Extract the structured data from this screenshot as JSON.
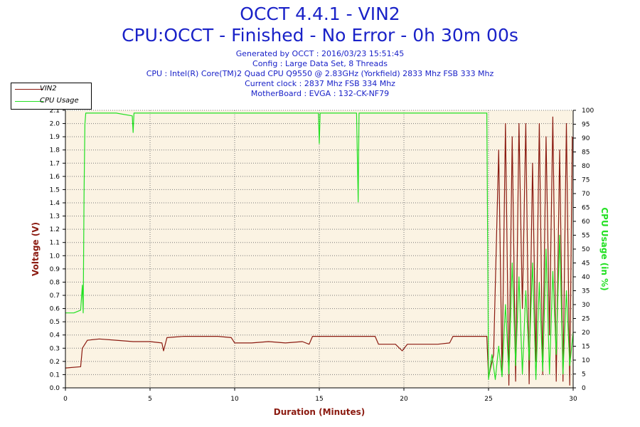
{
  "header": {
    "title_line1": "OCCT 4.4.1 - VIN2",
    "title_line2": "CPU:OCCT - Finished - No Error - 0h 30m 00s",
    "info_lines": [
      "Generated by OCCT : 2016/03/23 15:51:45",
      "Config : Large Data Set, 8 Threads",
      "CPU : Intel(R) Core(TM)2 Quad CPU Q9550 @ 2.83GHz (Yorkfield) 2833 Mhz FSB 333 Mhz",
      "Current clock : 2837 Mhz FSB 334 Mhz",
      "MotherBoard : EVGA : 132-CK-NF79"
    ]
  },
  "legend": {
    "items": [
      {
        "label": "VIN2",
        "color": "#8b1a10"
      },
      {
        "label": "CPU Usage",
        "color": "#22e022"
      }
    ]
  },
  "chart_data": {
    "type": "line",
    "xlabel": "Duration (Minutes)",
    "ylabel_left": "Voltage (V)",
    "ylabel_right": "CPU Usage (in %)",
    "xlim": [
      0,
      30
    ],
    "ylim_left": [
      0,
      2.1
    ],
    "ylim_right": [
      0,
      100
    ],
    "x_ticks": [
      0,
      5,
      10,
      15,
      20,
      25,
      30
    ],
    "y_left_ticks": [
      "0.0",
      "0.1",
      "0.2",
      "0.3",
      "0.4",
      "0.5",
      "0.6",
      "0.7",
      "0.8",
      "0.9",
      "1.0",
      "1.1",
      "1.2",
      "1.3",
      "1.4",
      "1.5",
      "1.6",
      "1.7",
      "1.8",
      "1.9",
      "2.0",
      "2.1"
    ],
    "y_right_ticks": [
      0,
      5,
      10,
      15,
      20,
      25,
      30,
      35,
      40,
      45,
      50,
      55,
      60,
      65,
      70,
      75,
      80,
      85,
      90,
      95,
      100
    ],
    "background_color": "#fbf3e3",
    "grid": "dotted",
    "series": [
      {
        "name": "VIN2",
        "axis": "left",
        "color": "#8b1a10",
        "points": [
          [
            0.0,
            0.15
          ],
          [
            0.9,
            0.16
          ],
          [
            1.0,
            0.3
          ],
          [
            1.3,
            0.36
          ],
          [
            2.0,
            0.37
          ],
          [
            3.0,
            0.36
          ],
          [
            4.0,
            0.35
          ],
          [
            5.0,
            0.35
          ],
          [
            5.7,
            0.34
          ],
          [
            5.8,
            0.28
          ],
          [
            6.0,
            0.38
          ],
          [
            7.0,
            0.39
          ],
          [
            8.0,
            0.39
          ],
          [
            9.0,
            0.39
          ],
          [
            9.8,
            0.38
          ],
          [
            10.0,
            0.34
          ],
          [
            11.0,
            0.34
          ],
          [
            12.0,
            0.35
          ],
          [
            13.0,
            0.34
          ],
          [
            14.0,
            0.35
          ],
          [
            14.4,
            0.33
          ],
          [
            14.6,
            0.39
          ],
          [
            15.0,
            0.39
          ],
          [
            16.0,
            0.39
          ],
          [
            17.0,
            0.39
          ],
          [
            18.3,
            0.39
          ],
          [
            18.5,
            0.33
          ],
          [
            19.5,
            0.33
          ],
          [
            19.9,
            0.28
          ],
          [
            20.2,
            0.33
          ],
          [
            21.0,
            0.33
          ],
          [
            22.0,
            0.33
          ],
          [
            22.7,
            0.34
          ],
          [
            22.9,
            0.39
          ],
          [
            24.0,
            0.39
          ],
          [
            24.9,
            0.39
          ],
          [
            25.0,
            0.08
          ],
          [
            25.3,
            0.25
          ],
          [
            25.6,
            1.8
          ],
          [
            25.8,
            0.1
          ],
          [
            26.0,
            2.0
          ],
          [
            26.2,
            0.02
          ],
          [
            26.4,
            1.9
          ],
          [
            26.6,
            0.05
          ],
          [
            26.8,
            2.0
          ],
          [
            27.0,
            0.6
          ],
          [
            27.2,
            2.0
          ],
          [
            27.4,
            0.03
          ],
          [
            27.6,
            1.7
          ],
          [
            27.8,
            0.2
          ],
          [
            28.0,
            2.0
          ],
          [
            28.2,
            0.1
          ],
          [
            28.4,
            1.9
          ],
          [
            28.6,
            0.4
          ],
          [
            28.8,
            2.05
          ],
          [
            29.0,
            0.05
          ],
          [
            29.2,
            1.8
          ],
          [
            29.4,
            0.05
          ],
          [
            29.6,
            2.0
          ],
          [
            29.8,
            0.02
          ],
          [
            29.95,
            1.9
          ]
        ]
      },
      {
        "name": "CPU Usage",
        "axis": "right",
        "color": "#22e022",
        "points": [
          [
            0.0,
            27
          ],
          [
            0.5,
            27
          ],
          [
            0.9,
            28
          ],
          [
            1.0,
            37
          ],
          [
            1.05,
            27
          ],
          [
            1.1,
            70
          ],
          [
            1.15,
            95
          ],
          [
            1.2,
            99
          ],
          [
            2.0,
            99
          ],
          [
            3.0,
            99
          ],
          [
            3.95,
            98
          ],
          [
            4.0,
            92
          ],
          [
            4.05,
            99
          ],
          [
            5.0,
            99
          ],
          [
            6.0,
            99
          ],
          [
            7.0,
            99
          ],
          [
            8.0,
            99
          ],
          [
            9.0,
            99
          ],
          [
            10.0,
            99
          ],
          [
            11.0,
            99
          ],
          [
            12.0,
            99
          ],
          [
            13.0,
            99
          ],
          [
            14.0,
            99
          ],
          [
            14.95,
            99
          ],
          [
            15.0,
            88
          ],
          [
            15.05,
            99
          ],
          [
            16.0,
            99
          ],
          [
            17.2,
            99
          ],
          [
            17.3,
            67
          ],
          [
            17.35,
            99
          ],
          [
            18.0,
            99
          ],
          [
            19.0,
            99
          ],
          [
            20.0,
            99
          ],
          [
            21.0,
            99
          ],
          [
            22.0,
            99
          ],
          [
            23.0,
            99
          ],
          [
            24.0,
            99
          ],
          [
            24.9,
            99
          ],
          [
            25.0,
            3
          ],
          [
            25.2,
            12
          ],
          [
            25.4,
            3
          ],
          [
            25.6,
            15
          ],
          [
            25.8,
            4
          ],
          [
            26.0,
            30
          ],
          [
            26.2,
            5
          ],
          [
            26.4,
            45
          ],
          [
            26.6,
            8
          ],
          [
            26.8,
            40
          ],
          [
            27.0,
            5
          ],
          [
            27.2,
            35
          ],
          [
            27.4,
            10
          ],
          [
            27.6,
            45
          ],
          [
            27.8,
            3
          ],
          [
            28.0,
            38
          ],
          [
            28.2,
            6
          ],
          [
            28.4,
            50
          ],
          [
            28.6,
            5
          ],
          [
            28.8,
            42
          ],
          [
            29.0,
            12
          ],
          [
            29.2,
            55
          ],
          [
            29.4,
            5
          ],
          [
            29.6,
            35
          ],
          [
            29.8,
            8
          ],
          [
            30.0,
            20
          ]
        ]
      }
    ]
  }
}
